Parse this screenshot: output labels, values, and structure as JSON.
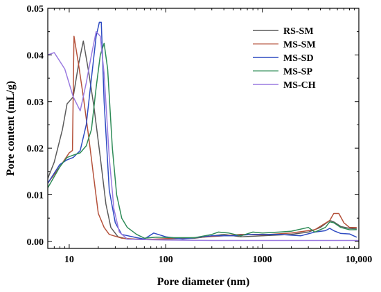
{
  "chart_data": {
    "type": "line",
    "title": "",
    "xlabel": "Pore diameter (nm)",
    "ylabel": "Pore content (mL/g)",
    "xscale": "log",
    "xlim": [
      6,
      10000
    ],
    "ylim": [
      -0.0015,
      0.05
    ],
    "x_ticks": [
      {
        "value": 10,
        "label": "10"
      },
      {
        "value": 100,
        "label": "100"
      },
      {
        "value": 1000,
        "label": "1000"
      },
      {
        "value": 10000,
        "label": "10,000"
      }
    ],
    "y_ticks": [
      {
        "value": 0.0,
        "label": "0.00"
      },
      {
        "value": 0.01,
        "label": "0.01"
      },
      {
        "value": 0.02,
        "label": "0.02"
      },
      {
        "value": 0.03,
        "label": "0.03"
      },
      {
        "value": 0.04,
        "label": "0.04"
      },
      {
        "value": 0.05,
        "label": "0.05"
      }
    ],
    "grid": false,
    "legend_position": "top-right",
    "series": [
      {
        "name": "RS-SM",
        "color": "#5a5a5a",
        "points": [
          [
            6,
            0.0135
          ],
          [
            7,
            0.017
          ],
          [
            8.5,
            0.024
          ],
          [
            9.5,
            0.0295
          ],
          [
            11,
            0.031
          ],
          [
            12.5,
            0.038
          ],
          [
            14,
            0.043
          ],
          [
            16,
            0.036
          ],
          [
            18,
            0.029
          ],
          [
            21,
            0.018
          ],
          [
            24,
            0.008
          ],
          [
            27,
            0.003
          ],
          [
            32,
            0.001
          ],
          [
            40,
            0.0005
          ],
          [
            60,
            0.0004
          ],
          [
            100,
            0.0005
          ],
          [
            200,
            0.0007
          ],
          [
            400,
            0.0015
          ],
          [
            600,
            0.001
          ],
          [
            1000,
            0.0012
          ],
          [
            2000,
            0.0015
          ],
          [
            3000,
            0.002
          ],
          [
            4000,
            0.003
          ],
          [
            5000,
            0.0045
          ],
          [
            5500,
            0.0042
          ],
          [
            6500,
            0.0032
          ],
          [
            8000,
            0.0028
          ],
          [
            9500,
            0.0027
          ]
        ]
      },
      {
        "name": "MS-SM",
        "color": "#b5513a",
        "points": [
          [
            6,
            0.0125
          ],
          [
            8,
            0.016
          ],
          [
            10,
            0.019
          ],
          [
            10.8,
            0.0195
          ],
          [
            11.2,
            0.044
          ],
          [
            12.5,
            0.038
          ],
          [
            14,
            0.031
          ],
          [
            16,
            0.022
          ],
          [
            18,
            0.0135
          ],
          [
            20,
            0.006
          ],
          [
            23,
            0.003
          ],
          [
            26,
            0.0015
          ],
          [
            35,
            0.0007
          ],
          [
            60,
            0.0004
          ],
          [
            100,
            0.0006
          ],
          [
            200,
            0.0008
          ],
          [
            400,
            0.0012
          ],
          [
            600,
            0.0015
          ],
          [
            1000,
            0.0014
          ],
          [
            2000,
            0.0018
          ],
          [
            3500,
            0.0025
          ],
          [
            5000,
            0.0045
          ],
          [
            5500,
            0.006
          ],
          [
            6200,
            0.006
          ],
          [
            7000,
            0.004
          ],
          [
            8000,
            0.003
          ],
          [
            9500,
            0.003
          ]
        ]
      },
      {
        "name": "MS-SD",
        "color": "#2e4bc2",
        "points": [
          [
            6,
            0.0125
          ],
          [
            8,
            0.0165
          ],
          [
            9.5,
            0.0175
          ],
          [
            11,
            0.018
          ],
          [
            13,
            0.0195
          ],
          [
            15,
            0.025
          ],
          [
            17,
            0.035
          ],
          [
            19,
            0.044
          ],
          [
            20.5,
            0.047
          ],
          [
            21.5,
            0.047
          ],
          [
            23,
            0.03
          ],
          [
            26,
            0.011
          ],
          [
            30,
            0.004
          ],
          [
            35,
            0.0015
          ],
          [
            50,
            0.0008
          ],
          [
            60,
            0.0005
          ],
          [
            75,
            0.0018
          ],
          [
            100,
            0.001
          ],
          [
            150,
            0.0005
          ],
          [
            200,
            0.0008
          ],
          [
            300,
            0.0012
          ],
          [
            500,
            0.0012
          ],
          [
            800,
            0.0015
          ],
          [
            1500,
            0.0015
          ],
          [
            2500,
            0.0012
          ],
          [
            3500,
            0.002
          ],
          [
            4500,
            0.0023
          ],
          [
            5000,
            0.0028
          ],
          [
            5500,
            0.0023
          ],
          [
            6500,
            0.0017
          ],
          [
            8000,
            0.0016
          ],
          [
            9500,
            0.0009
          ]
        ]
      },
      {
        "name": "MS-SP",
        "color": "#2e8b57",
        "points": [
          [
            6,
            0.0115
          ],
          [
            8,
            0.016
          ],
          [
            9.5,
            0.018
          ],
          [
            11,
            0.0185
          ],
          [
            13,
            0.019
          ],
          [
            15,
            0.0205
          ],
          [
            17,
            0.024
          ],
          [
            19,
            0.033
          ],
          [
            21,
            0.04
          ],
          [
            23,
            0.0425
          ],
          [
            25,
            0.037
          ],
          [
            28,
            0.02
          ],
          [
            31,
            0.01
          ],
          [
            35,
            0.005
          ],
          [
            40,
            0.003
          ],
          [
            50,
            0.0015
          ],
          [
            60,
            0.0007
          ],
          [
            80,
            0.0009
          ],
          [
            120,
            0.0008
          ],
          [
            200,
            0.0008
          ],
          [
            300,
            0.0015
          ],
          [
            350,
            0.002
          ],
          [
            450,
            0.0018
          ],
          [
            600,
            0.0012
          ],
          [
            800,
            0.002
          ],
          [
            1000,
            0.0018
          ],
          [
            1500,
            0.002
          ],
          [
            2000,
            0.0022
          ],
          [
            3000,
            0.003
          ],
          [
            3500,
            0.002
          ],
          [
            4500,
            0.003
          ],
          [
            5000,
            0.0042
          ],
          [
            5500,
            0.004
          ],
          [
            6500,
            0.003
          ],
          [
            8000,
            0.0025
          ],
          [
            9500,
            0.0025
          ]
        ]
      },
      {
        "name": "MS-CH",
        "color": "#9a7ae0",
        "points": [
          [
            6,
            0.04
          ],
          [
            7,
            0.0405
          ],
          [
            9,
            0.037
          ],
          [
            11,
            0.031
          ],
          [
            13,
            0.028
          ],
          [
            15,
            0.034
          ],
          [
            17,
            0.04
          ],
          [
            19,
            0.045
          ],
          [
            21,
            0.044
          ],
          [
            23,
            0.036
          ],
          [
            26,
            0.018
          ],
          [
            29,
            0.007
          ],
          [
            33,
            0.002
          ],
          [
            40,
            0.0005
          ],
          [
            60,
            0.0004
          ],
          [
            100,
            0.0003
          ],
          [
            300,
            0.0002
          ],
          [
            1000,
            0.0002
          ],
          [
            3000,
            0.0002
          ],
          [
            10000,
            0.0002
          ]
        ]
      }
    ]
  }
}
